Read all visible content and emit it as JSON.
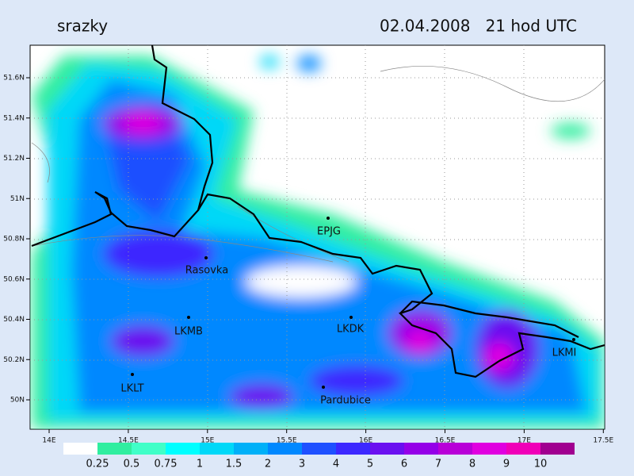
{
  "header": {
    "title": "srazky",
    "datetime": "02.04.2008   21 hod UTC"
  },
  "map": {
    "lat_labels": [
      "51.6N",
      "51.4N",
      "51.2N",
      "51N",
      "50.8N",
      "50.6N",
      "50.4N",
      "50.2N",
      "50N"
    ],
    "lon_labels": [
      "14E",
      "14.5E",
      "15E",
      "15.5E",
      "16E",
      "16.5E",
      "17E",
      "17.5E"
    ],
    "places": [
      "EPJG",
      "Rasovka",
      "LKMB",
      "LKDK",
      "LKLT",
      "Pardubice",
      "LKMI"
    ]
  },
  "legend": {
    "labels": [
      "0.25",
      "0.5",
      "0.75",
      "1",
      "1.5",
      "2",
      "3",
      "4",
      "5",
      "6",
      "7",
      "8",
      "9",
      "10"
    ],
    "colors": [
      "#ffffff",
      "#30eea0",
      "#40ffc8",
      "#00ffff",
      "#00d8f8",
      "#00b0f8",
      "#0088ff",
      "#1e50ff",
      "#3c28ff",
      "#6a10f0",
      "#9400e8",
      "#b800d8",
      "#e000e0",
      "#f000b8",
      "#a00090"
    ]
  }
}
